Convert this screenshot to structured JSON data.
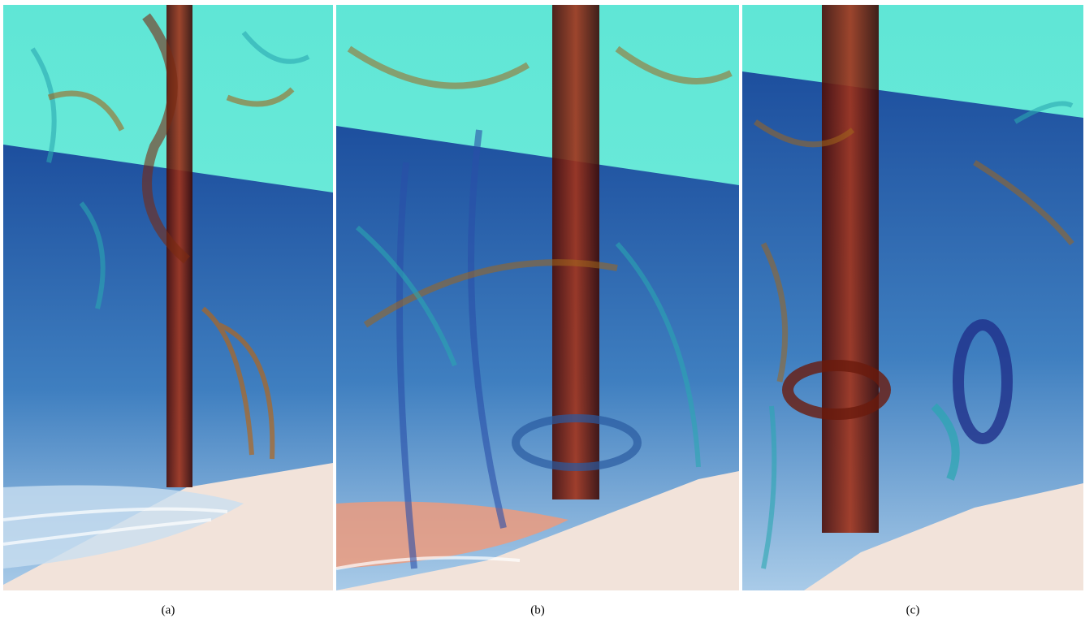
{
  "figure": {
    "panels": [
      {
        "label": "(a)"
      },
      {
        "label": "(b)"
      },
      {
        "label": "(c)"
      }
    ]
  }
}
